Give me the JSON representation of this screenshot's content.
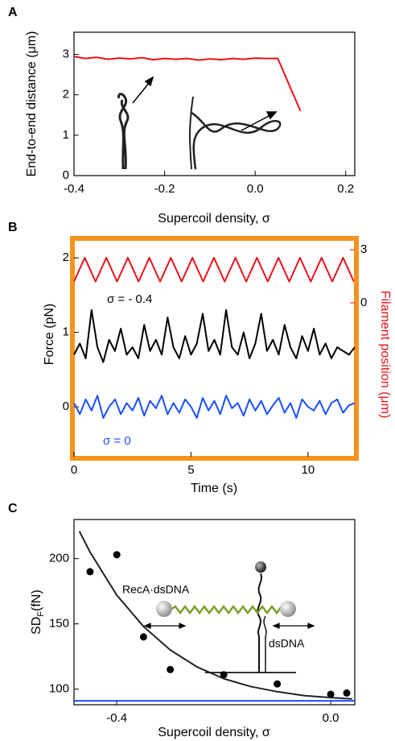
{
  "chart_data": [
    {
      "type": "line",
      "panel": "A",
      "xlabel": "Supercoil density, σ",
      "ylabel": "End-to-end distance (μm)",
      "x": [
        -0.4,
        -0.375,
        -0.35,
        -0.325,
        -0.3,
        -0.275,
        -0.25,
        -0.225,
        -0.2,
        -0.175,
        -0.15,
        -0.125,
        -0.1,
        -0.075,
        -0.05,
        -0.025,
        0,
        0.025,
        0.05,
        0.075,
        0.1
      ],
      "series": [
        {
          "color": "#e8141c",
          "mode": "lines",
          "values": [
            2.95,
            2.9,
            2.93,
            2.88,
            2.91,
            2.89,
            2.92,
            2.87,
            2.9,
            2.88,
            2.9,
            2.86,
            2.89,
            2.87,
            2.9,
            2.88,
            2.91,
            2.9,
            2.9,
            2.25,
            1.6
          ]
        }
      ],
      "xlim": [
        -0.4,
        0.22
      ],
      "ylim": [
        0,
        3.55
      ],
      "xticks": [
        -0.4,
        -0.2,
        {
          "value": 0,
          "label": "0.0"
        },
        0.2
      ],
      "yticks": [
        0,
        1,
        2,
        3
      ],
      "frame_color": "#000000"
    },
    {
      "type": "line",
      "panel": "B",
      "xlabel": "Time (s)",
      "ylabel": "Force (pN)",
      "y2label": "Filament position (μm)",
      "annotations": [
        "σ  = - 0.4",
        "σ  = 0"
      ],
      "x": [
        0,
        0.25,
        0.5,
        0.75,
        1,
        1.25,
        1.5,
        1.75,
        2,
        2.25,
        2.5,
        2.75,
        3,
        3.25,
        3.5,
        3.75,
        4,
        4.25,
        4.5,
        4.75,
        5,
        5.25,
        5.5,
        5.75,
        6,
        6.25,
        6.5,
        6.75,
        7,
        7.25,
        7.5,
        7.75,
        8,
        8.25,
        8.5,
        8.75,
        9,
        9.25,
        9.5,
        9.75,
        10,
        10.25,
        10.5,
        10.75,
        11,
        11.25,
        11.5,
        11.75,
        12
      ],
      "series": [
        {
          "color": "#e8141c",
          "mode": "lines",
          "axis": "y2",
          "x": [
            0,
            0.46,
            0.92,
            1.38,
            1.84,
            2.3,
            2.76,
            3.22,
            3.68,
            4.14,
            4.6,
            5.06,
            5.52,
            5.98,
            6.44,
            6.9,
            7.36,
            7.82,
            8.28,
            8.74,
            9.2,
            9.66,
            10.12,
            10.58,
            11.04,
            11.5,
            11.96
          ],
          "values": [
            1.2,
            2.55,
            1.2,
            2.55,
            1.2,
            2.55,
            1.2,
            2.55,
            1.2,
            2.55,
            1.2,
            2.55,
            1.2,
            2.55,
            1.2,
            2.55,
            1.2,
            2.55,
            1.2,
            2.55,
            1.2,
            2.55,
            1.2,
            2.55,
            1.2,
            2.55,
            1.2
          ]
        },
        {
          "color": "#000000",
          "mode": "lines",
          "values": [
            0.7,
            0.85,
            0.65,
            1.3,
            0.8,
            0.6,
            0.9,
            0.75,
            1.05,
            0.7,
            0.8,
            0.65,
            1.1,
            0.75,
            0.9,
            0.7,
            1.2,
            0.8,
            0.65,
            0.95,
            0.7,
            0.85,
            1.25,
            0.75,
            0.9,
            0.7,
            1.3,
            0.8,
            0.7,
            1.0,
            0.65,
            0.85,
            1.25,
            0.75,
            0.9,
            0.7,
            1.1,
            0.8,
            0.65,
            0.95,
            0.75,
            1.05,
            0.7,
            0.85,
            0.65,
            0.8,
            0.75,
            0.7,
            0.8
          ]
        },
        {
          "color": "#1a4fff",
          "mode": "lines",
          "values": [
            0.05,
            -0.1,
            0.1,
            -0.05,
            0.15,
            -0.15,
            0.0,
            0.1,
            -0.1,
            0.05,
            -0.05,
            0.12,
            -0.12,
            0.08,
            -0.02,
            0.15,
            -0.1,
            0.05,
            -0.08,
            0.1,
            0.0,
            -0.15,
            0.12,
            -0.05,
            0.08,
            -0.1,
            0.15,
            -0.02,
            0.05,
            -0.12,
            0.1,
            -0.05,
            0.08,
            -0.1,
            0.02,
            0.12,
            -0.08,
            0.05,
            -0.15,
            0.1,
            0.0,
            -0.05,
            0.08,
            -0.1,
            0.05,
            0.1,
            -0.08,
            0.02,
            0.05
          ]
        }
      ],
      "xlim": [
        0,
        12
      ],
      "ylim": [
        -0.67,
        2.24
      ],
      "y2lim": [
        -8.7,
        3.55
      ],
      "xticks": [
        0,
        5,
        10
      ],
      "yticks": [
        0,
        1,
        2
      ],
      "y2ticks": [
        0,
        3
      ],
      "y2color": "#e8141c",
      "frame_color": "#f7931e"
    },
    {
      "type": "scatter",
      "panel": "C",
      "xlabel": "Supercoil density,  σ",
      "ylabel": {
        "main": "SD",
        "sub": "F",
        "unit": "(fN)"
      },
      "annotations": [
        "RecA·dsDNA",
        "dsDNA"
      ],
      "series": [
        {
          "color": "#000000",
          "mode": "markers",
          "x": [
            -0.45,
            -0.4,
            -0.35,
            -0.3,
            -0.2,
            -0.1,
            0,
            0.03
          ],
          "values": [
            190,
            203,
            140,
            115,
            111,
            104,
            96,
            97
          ]
        },
        {
          "color": "#222222",
          "mode": "lines",
          "x": [
            -0.47,
            -0.45,
            -0.4,
            -0.35,
            -0.3,
            -0.25,
            -0.2,
            -0.15,
            -0.1,
            -0.05,
            0,
            0.04
          ],
          "values": [
            221,
            205,
            172,
            148,
            130,
            117,
            108,
            102,
            98,
            95,
            93.5,
            92.5
          ]
        },
        {
          "color": "#1a4fff",
          "mode": "lines",
          "x": [
            -0.48,
            0.045
          ],
          "values": [
            91,
            91
          ]
        }
      ],
      "xlim": [
        -0.48,
        0.045
      ],
      "ylim": [
        88,
        230
      ],
      "xticks": [
        -0.4,
        {
          "value": 0,
          "label": "0.0"
        }
      ],
      "yticks": [
        100,
        150,
        200
      ],
      "frame_color": "#000000"
    }
  ]
}
